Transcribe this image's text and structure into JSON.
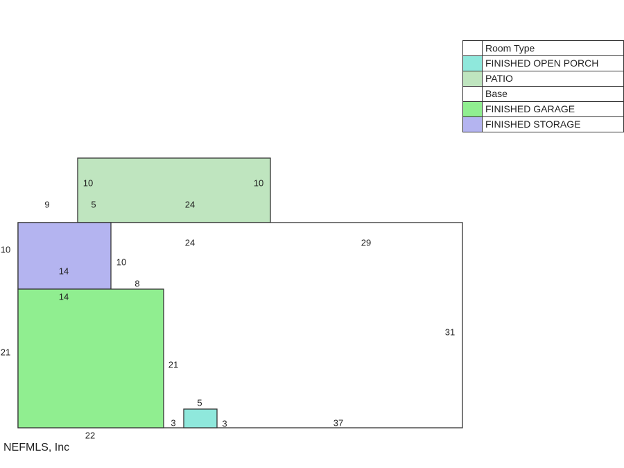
{
  "legend": {
    "header": "Room Type",
    "rows": [
      {
        "label": "FINISHED OPEN PORCH",
        "color": "#8fe8dc"
      },
      {
        "label": "PATIO",
        "color": "#bfe5bf"
      },
      {
        "label": "Base",
        "color": "#ffffff"
      },
      {
        "label": "FINISHED GARAGE",
        "color": "#90ee90"
      },
      {
        "label": "FINISHED STORAGE",
        "color": "#b4b4f0"
      }
    ]
  },
  "dimensions": [
    10,
    10,
    5,
    24,
    9,
    24,
    29,
    10,
    14,
    10,
    8,
    14,
    21,
    21,
    31,
    5,
    3,
    3,
    37,
    22
  ],
  "footer": "NEFMLS, Inc"
}
